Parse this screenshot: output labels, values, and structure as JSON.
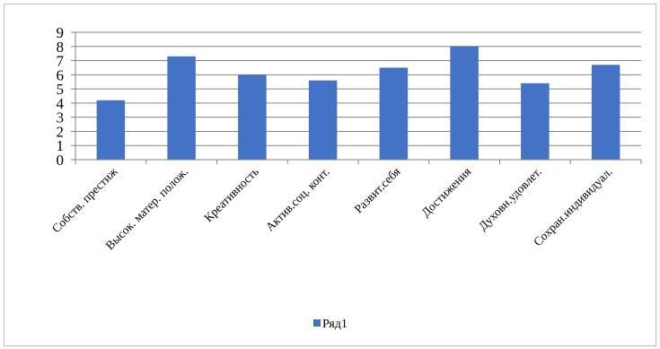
{
  "chart_data": {
    "type": "bar",
    "categories": [
      "Собств. престиж",
      "Высок. матер. полож.",
      "Креативность",
      "Актив.соц. конт.",
      "Развит.себя",
      "Достижения",
      "Духовн.удовлет.",
      "Сохран.индивидуал."
    ],
    "series": [
      {
        "name": "Ряд1",
        "values": [
          4.2,
          7.3,
          6.0,
          5.6,
          6.5,
          8.0,
          5.4,
          6.7
        ]
      }
    ],
    "ylim": [
      0,
      9
    ],
    "yticks": [
      0,
      1,
      2,
      3,
      4,
      5,
      6,
      7,
      8,
      9
    ],
    "grid": true,
    "legend": "bottom",
    "colors": {
      "bar": "#4472C4",
      "grid": "#868686",
      "axis": "#868686"
    }
  }
}
